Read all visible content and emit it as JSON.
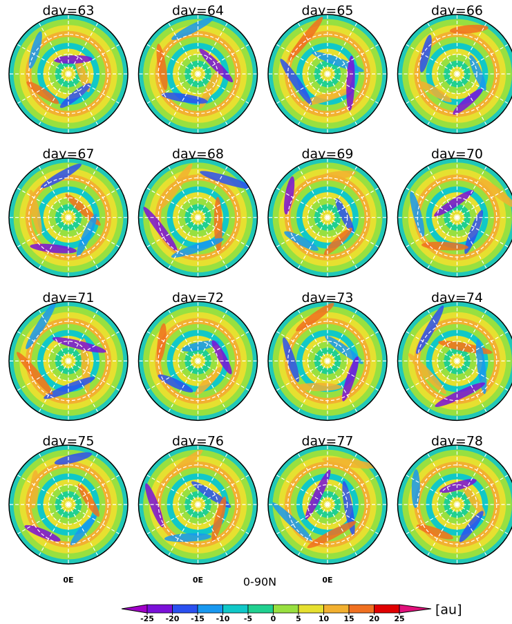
{
  "panels": [
    "day=63",
    "day=64",
    "day=65",
    "day=66",
    "day=67",
    "day=68",
    "day=69",
    "day=70",
    "day=71",
    "day=72",
    "day=73",
    "day=74",
    "day=75",
    "day=76",
    "day=77",
    "day=78"
  ],
  "bottom_labels": [
    "0E",
    "0E",
    "0E"
  ],
  "region_label": "0-90N",
  "colorbar": {
    "levels": [
      -25,
      -20,
      -15,
      -10,
      -5,
      0,
      5,
      10,
      15,
      20,
      25
    ],
    "colors": [
      "#a000c8",
      "#7a10d8",
      "#2a50f0",
      "#1898f0",
      "#10c8c8",
      "#20d090",
      "#98e040",
      "#e6e030",
      "#f2b030",
      "#f07020",
      "#e00000",
      "#e0107a"
    ],
    "label": "[au]"
  }
}
